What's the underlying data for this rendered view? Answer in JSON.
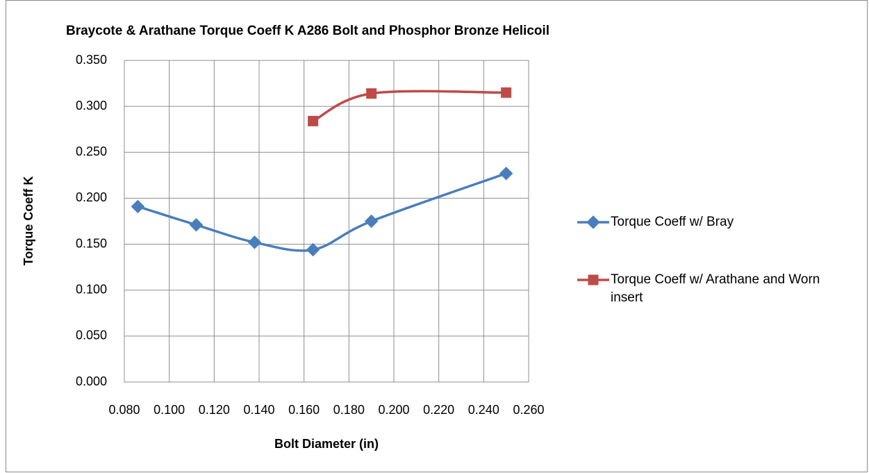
{
  "chart_data": {
    "type": "line",
    "smooth": true,
    "title": "Braycote & Arathane Torque Coeff K A286 Bolt and Phosphor Bronze Helicoil",
    "x_label": "Bolt Diameter (in)",
    "y_label": "Torque Coeff K",
    "series": [
      {
        "name": "Torque Coeff w/ Bray",
        "color": "#4a7ebb",
        "marker": "diamond",
        "x": [
          0.086,
          0.112,
          0.138,
          0.164,
          0.19,
          0.25
        ],
        "values": [
          0.191,
          0.171,
          0.152,
          0.144,
          0.175,
          0.227
        ]
      },
      {
        "name": "Torque Coeff w/ Arathane and Worn insert",
        "color": "#be4b48",
        "marker": "square",
        "x": [
          0.164,
          0.19,
          0.25
        ],
        "values": [
          0.284,
          0.314,
          0.315
        ]
      }
    ],
    "xlim": [
      0.08,
      0.26
    ],
    "xticks": [
      {
        "value": 0.08,
        "label": "0.080"
      },
      {
        "value": 0.1,
        "label": "0.100"
      },
      {
        "value": 0.12,
        "label": "0.120"
      },
      {
        "value": 0.14,
        "label": "0.140"
      },
      {
        "value": 0.16,
        "label": "0.160"
      },
      {
        "value": 0.18,
        "label": "0.180"
      },
      {
        "value": 0.2,
        "label": "0.200"
      },
      {
        "value": 0.22,
        "label": "0.220"
      },
      {
        "value": 0.24,
        "label": "0.240"
      },
      {
        "value": 0.26,
        "label": "0.260"
      }
    ],
    "ylim": [
      0,
      0.35
    ],
    "yticks": [
      {
        "value": 0,
        "label": "0.000"
      },
      {
        "value": 0.05,
        "label": "0.050"
      },
      {
        "value": 0.1,
        "label": "0.100"
      },
      {
        "value": 0.15,
        "label": "0.150"
      },
      {
        "value": 0.2,
        "label": "0.200"
      },
      {
        "value": 0.25,
        "label": "0.250"
      },
      {
        "value": 0.3,
        "label": "0.300"
      },
      {
        "value": 0.35,
        "label": "0.350"
      }
    ],
    "grid": true,
    "legend": "right"
  }
}
